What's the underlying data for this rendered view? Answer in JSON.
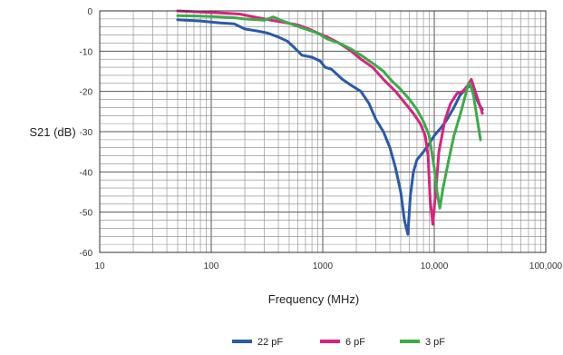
{
  "chart_data": {
    "type": "line",
    "xlabel": "Frequency (MHz)",
    "ylabel": "S21 (dB)",
    "x_scale": "log",
    "xlim": [
      10,
      100000
    ],
    "ylim": [
      -60,
      0
    ],
    "grid": true,
    "legend_position": "bottom-center",
    "x_ticks": [
      {
        "value": 10,
        "label": "10"
      },
      {
        "value": 100,
        "label": "100"
      },
      {
        "value": 1000,
        "label": "1000"
      },
      {
        "value": 10000,
        "label": "10,000"
      },
      {
        "value": 100000,
        "label": "100,000"
      }
    ],
    "y_ticks": [
      {
        "value": 0,
        "label": "0"
      },
      {
        "value": -10,
        "label": "-10"
      },
      {
        "value": -20,
        "label": "-20"
      },
      {
        "value": -30,
        "label": "-30"
      },
      {
        "value": -40,
        "label": "-40"
      },
      {
        "value": -50,
        "label": "-50"
      },
      {
        "value": -60,
        "label": "-60"
      }
    ],
    "series": [
      {
        "name": "22 pF",
        "color": "#2a5aa8",
        "x": [
          50,
          80,
          120,
          160,
          200,
          260,
          320,
          400,
          480,
          550,
          650,
          800,
          950,
          1050,
          1200,
          1500,
          1800,
          2200,
          2600,
          3000,
          3500,
          4000,
          4500,
          5000,
          5400,
          5800,
          6100,
          6500,
          7000,
          8000,
          9000,
          10000,
          11500,
          13000,
          15000,
          17000,
          19000,
          21000,
          23000,
          25000,
          27000
        ],
        "y": [
          -2.2,
          -2.5,
          -3.0,
          -3.2,
          -4.5,
          -5.0,
          -5.5,
          -6.5,
          -7.5,
          -9.0,
          -11.0,
          -11.5,
          -12.5,
          -14.0,
          -14.5,
          -17.0,
          -18.5,
          -20.0,
          -23.0,
          -27.0,
          -30.0,
          -34.0,
          -39.0,
          -45.0,
          -52.0,
          -55.5,
          -46.0,
          -40.0,
          -37.0,
          -35.0,
          -33.0,
          -31.0,
          -29.0,
          -27.0,
          -24.0,
          -21.0,
          -19.5,
          -18.5,
          -20.5,
          -23.0,
          -24.5
        ]
      },
      {
        "name": "6 pF",
        "color": "#d8237e",
        "x": [
          50,
          80,
          120,
          180,
          240,
          300,
          380,
          480,
          600,
          750,
          900,
          1100,
          1400,
          1800,
          2200,
          2800,
          3500,
          4500,
          5500,
          6500,
          7500,
          8300,
          8800,
          9200,
          9700,
          10300,
          11000,
          12500,
          14000,
          16000,
          18000,
          20000,
          21500,
          23000,
          25000,
          27000
        ],
        "y": [
          0.0,
          -0.3,
          -0.5,
          -0.8,
          -1.5,
          -2.0,
          -2.5,
          -3.0,
          -3.5,
          -4.5,
          -5.5,
          -6.5,
          -8.0,
          -10.0,
          -12.0,
          -14.0,
          -17.0,
          -20.0,
          -23.0,
          -25.5,
          -28.0,
          -31.0,
          -36.0,
          -47.0,
          -53.0,
          -45.0,
          -35.0,
          -27.0,
          -23.0,
          -20.5,
          -20.0,
          -18.5,
          -17.0,
          -19.5,
          -22.5,
          -25.5
        ]
      },
      {
        "name": "3 pF",
        "color": "#3cab48",
        "x": [
          50,
          80,
          120,
          160,
          200,
          260,
          300,
          360,
          440,
          550,
          700,
          900,
          1100,
          1400,
          1800,
          2200,
          2800,
          3500,
          4200,
          5000,
          6000,
          7000,
          8000,
          9000,
          10000,
          10600,
          11200,
          12000,
          13500,
          15000,
          17000,
          19000,
          20000,
          21000,
          22500,
          24000,
          26000
        ],
        "y": [
          -1.2,
          -1.3,
          -1.5,
          -1.7,
          -2.0,
          -2.2,
          -2.3,
          -1.5,
          -2.5,
          -3.5,
          -4.5,
          -5.5,
          -7.0,
          -8.0,
          -9.5,
          -11.0,
          -13.0,
          -15.0,
          -17.5,
          -19.5,
          -22.0,
          -24.5,
          -27.5,
          -31.0,
          -39.0,
          -45.0,
          -49.0,
          -44.0,
          -37.0,
          -31.0,
          -26.0,
          -21.0,
          -18.5,
          -18.0,
          -21.0,
          -26.0,
          -32.0
        ]
      }
    ]
  }
}
